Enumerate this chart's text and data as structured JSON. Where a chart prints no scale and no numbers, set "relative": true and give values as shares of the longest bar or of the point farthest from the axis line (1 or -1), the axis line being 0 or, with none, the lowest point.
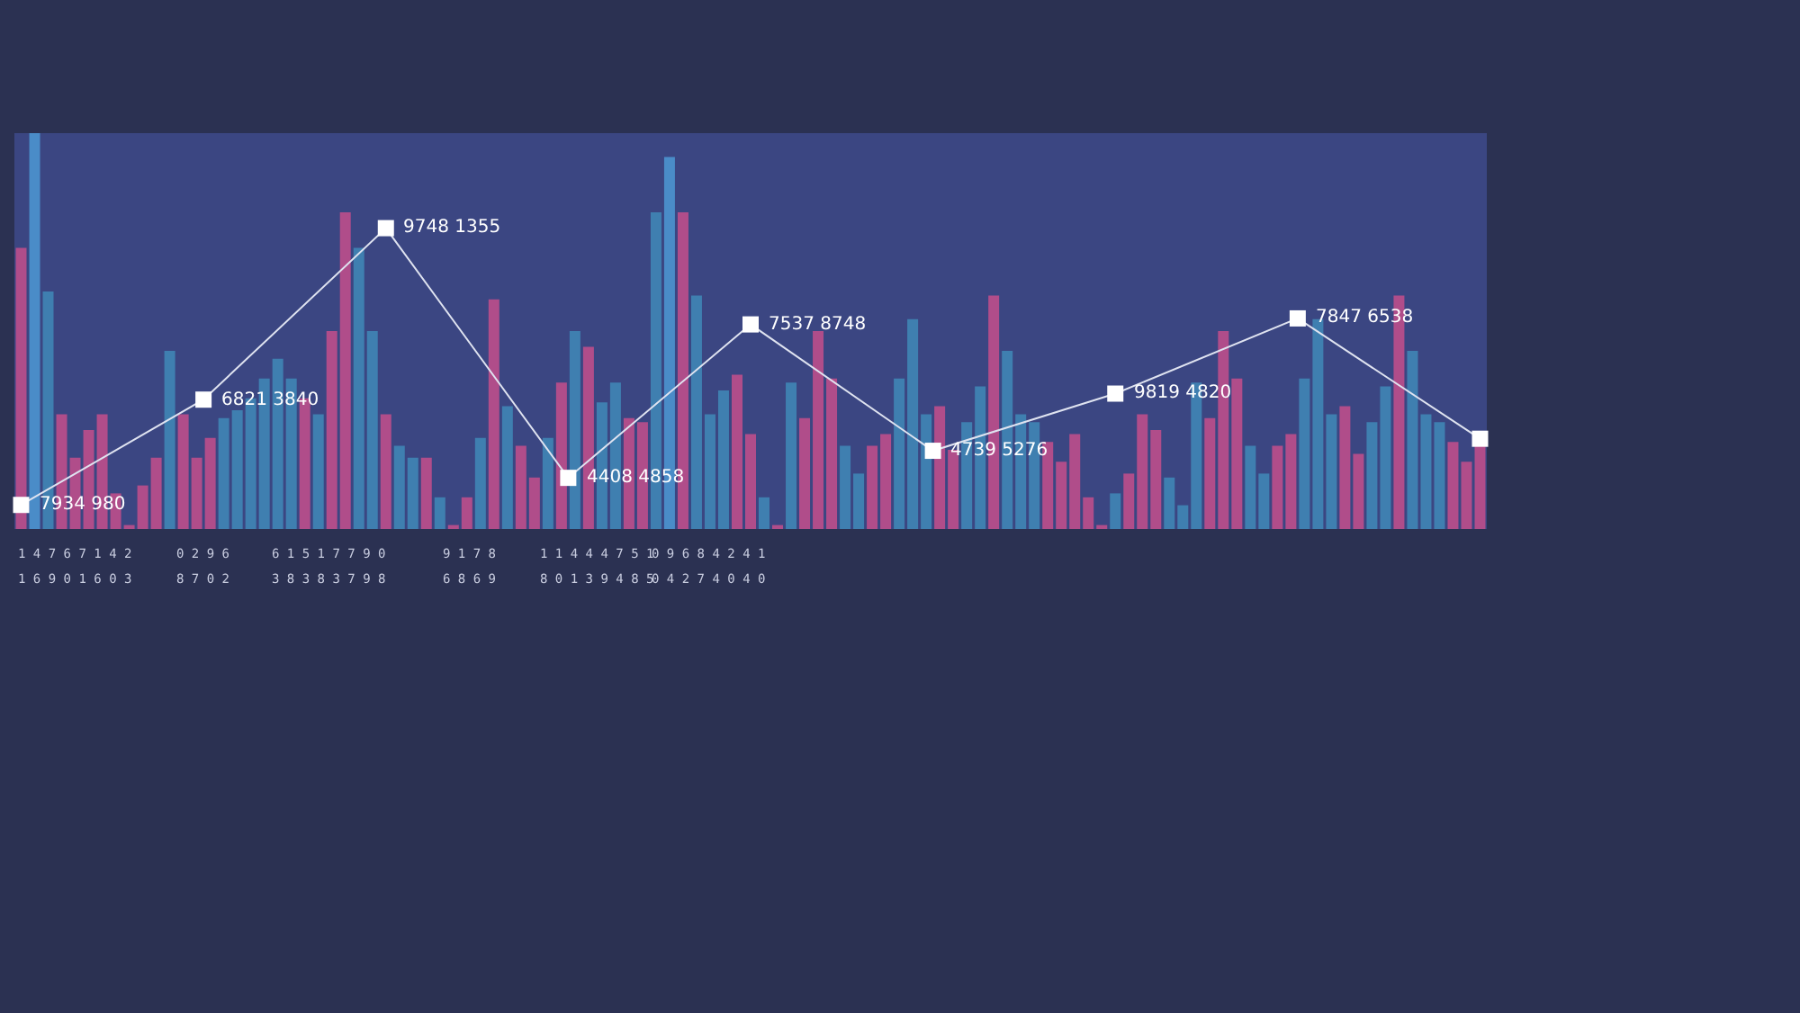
{
  "chart_data": [
    {
      "type": "bar",
      "relative": true,
      "tick_labels": false,
      "categories": [
        null,
        null,
        null,
        null,
        null,
        null,
        null,
        null,
        null,
        null,
        null,
        null,
        null,
        null,
        null,
        null,
        null,
        null,
        null,
        null,
        null,
        null,
        null,
        null,
        null,
        null,
        null,
        null,
        null,
        null,
        null,
        null,
        null,
        null,
        null,
        null,
        null,
        null,
        null,
        null,
        null,
        null,
        null,
        null,
        null,
        null,
        null,
        null,
        null,
        null,
        null,
        null,
        null,
        null,
        null,
        null,
        null,
        null,
        null,
        null,
        null,
        null,
        null,
        null,
        null,
        null,
        null,
        null,
        null,
        null,
        null,
        null,
        null,
        null,
        null,
        null,
        null,
        null,
        null,
        null,
        null,
        null,
        null,
        null,
        null,
        null,
        null,
        null,
        null,
        null,
        null,
        null,
        null,
        null,
        null,
        null,
        null,
        null,
        null,
        null,
        null,
        null,
        null,
        null,
        null,
        null,
        null,
        null,
        null
      ],
      "values": [
        0.71,
        1.0,
        0.6,
        0.29,
        0.18,
        0.25,
        0.29,
        0.09,
        0.01,
        0.11,
        0.18,
        0.45,
        0.29,
        0.18,
        0.23,
        0.28,
        0.3,
        0.33,
        0.38,
        0.43,
        0.38,
        0.33,
        0.29,
        0.5,
        0.8,
        0.71,
        0.5,
        0.29,
        0.21,
        0.18,
        0.18,
        0.08,
        0.01,
        0.08,
        0.23,
        0.58,
        0.31,
        0.21,
        0.13,
        0.23,
        0.37,
        0.5,
        0.46,
        0.32,
        0.37,
        0.28,
        0.27,
        0.8,
        0.94,
        0.8,
        0.59,
        0.29,
        0.35,
        0.39,
        0.24,
        0.08,
        0.01,
        0.37,
        0.28,
        0.5,
        0.38,
        0.21,
        0.14,
        0.21,
        0.24,
        0.38,
        0.53,
        0.29,
        0.31,
        0.2,
        0.27,
        0.36,
        0.59,
        0.45,
        0.29,
        0.27,
        0.22,
        0.17,
        0.24,
        0.08,
        0.01,
        0.09,
        0.14,
        0.29,
        0.25,
        0.13,
        0.06,
        0.37,
        0.28,
        0.5,
        0.38,
        0.21,
        0.14,
        0.21,
        0.24,
        0.38,
        0.53,
        0.29,
        0.31,
        0.19,
        0.27,
        0.36,
        0.59,
        0.45,
        0.29,
        0.27,
        0.22,
        0.17,
        0.22
      ],
      "colors": [
        "#b04d8a",
        "#4a8cc8",
        "#3f7fb0",
        "#b04d8a",
        "#b04d8a",
        "#b04d8a",
        "#b04d8a",
        "#b04d8a",
        "#b04d8a",
        "#b04d8a",
        "#b04d8a",
        "#3f7fb0",
        "#b04d8a",
        "#b04d8a",
        "#b04d8a",
        "#3f7fb0",
        "#3f7fb0",
        "#3f7fb0",
        "#3f7fb0",
        "#3f7fb0",
        "#3f7fb0",
        "#b04d8a",
        "#3f7fb0",
        "#b04d8a",
        "#b04d8a",
        "#3f7fb0",
        "#3f7fb0",
        "#b04d8a",
        "#3f7fb0",
        "#3f7fb0",
        "#b04d8a",
        "#3f7fb0",
        "#b04d8a",
        "#b04d8a",
        "#3f7fb0",
        "#b04d8a",
        "#3f7fb0",
        "#b04d8a",
        "#b04d8a",
        "#3f7fb0",
        "#b04d8a",
        "#3f7fb0",
        "#b04d8a",
        "#3f7fb0",
        "#3f7fb0",
        "#b04d8a",
        "#b04d8a",
        "#3f7fb0",
        "#4a8cc8",
        "#b04d8a",
        "#3f7fb0",
        "#3f7fb0",
        "#3f7fb0",
        "#b04d8a",
        "#b04d8a",
        "#3f7fb0",
        "#b04d8a",
        "#3f7fb0",
        "#b04d8a",
        "#b04d8a",
        "#b04d8a",
        "#3f7fb0",
        "#3f7fb0",
        "#b04d8a",
        "#b04d8a",
        "#3f7fb0",
        "#3f7fb0",
        "#3f7fb0",
        "#b04d8a",
        "#b04d8a",
        "#3f7fb0",
        "#3f7fb0",
        "#b04d8a",
        "#3f7fb0",
        "#3f7fb0",
        "#3f7fb0",
        "#b04d8a",
        "#b04d8a",
        "#b04d8a",
        "#b04d8a",
        "#b04d8a",
        "#3f7fb0",
        "#b04d8a",
        "#b04d8a",
        "#b04d8a",
        "#3f7fb0",
        "#3f7fb0",
        "#3f7fb0",
        "#b04d8a",
        "#b04d8a",
        "#b04d8a",
        "#3f7fb0",
        "#3f7fb0",
        "#b04d8a",
        "#b04d8a",
        "#3f7fb0",
        "#3f7fb0",
        "#3f7fb0",
        "#b04d8a",
        "#b04d8a",
        "#3f7fb0",
        "#3f7fb0",
        "#b04d8a",
        "#3f7fb0",
        "#3f7fb0",
        "#3f7fb0",
        "#b04d8a",
        "#b04d8a",
        "#b04d8a"
      ],
      "annotations": [
        "1 4 7 6 7 1 4 2",
        "0 2 9 6",
        "6 1 5 1 7 7 9 0",
        "9 1 7 8",
        "1 1 4 4 4 7 5 1",
        "0 9 6 8 4 2 4 1",
        "1 6 9 0 1 6 0 3",
        "8 7 0 2",
        "3 8 3 8 3 7 9 8",
        "6 8 6 9",
        "8 0 1 3 9 4 8 5",
        "0 4 2 7 4 0 4 0"
      ]
    },
    {
      "type": "line",
      "relative": true,
      "tick_labels": false,
      "color": "#dfe3f0",
      "marker": "square",
      "line_style": "solid",
      "categories": [
        null,
        null,
        null,
        null,
        null,
        null,
        null,
        null,
        null
      ],
      "values": [
        0.08,
        0.43,
        1.0,
        0.17,
        0.68,
        0.26,
        0.45,
        0.7,
        0.3
      ],
      "annotations": [
        "7934 980",
        "6821 3840",
        "9748 1355",
        "4408 4858",
        "7537 8748",
        "4739 5276",
        "9819 4820",
        "7847 6538"
      ]
    }
  ]
}
